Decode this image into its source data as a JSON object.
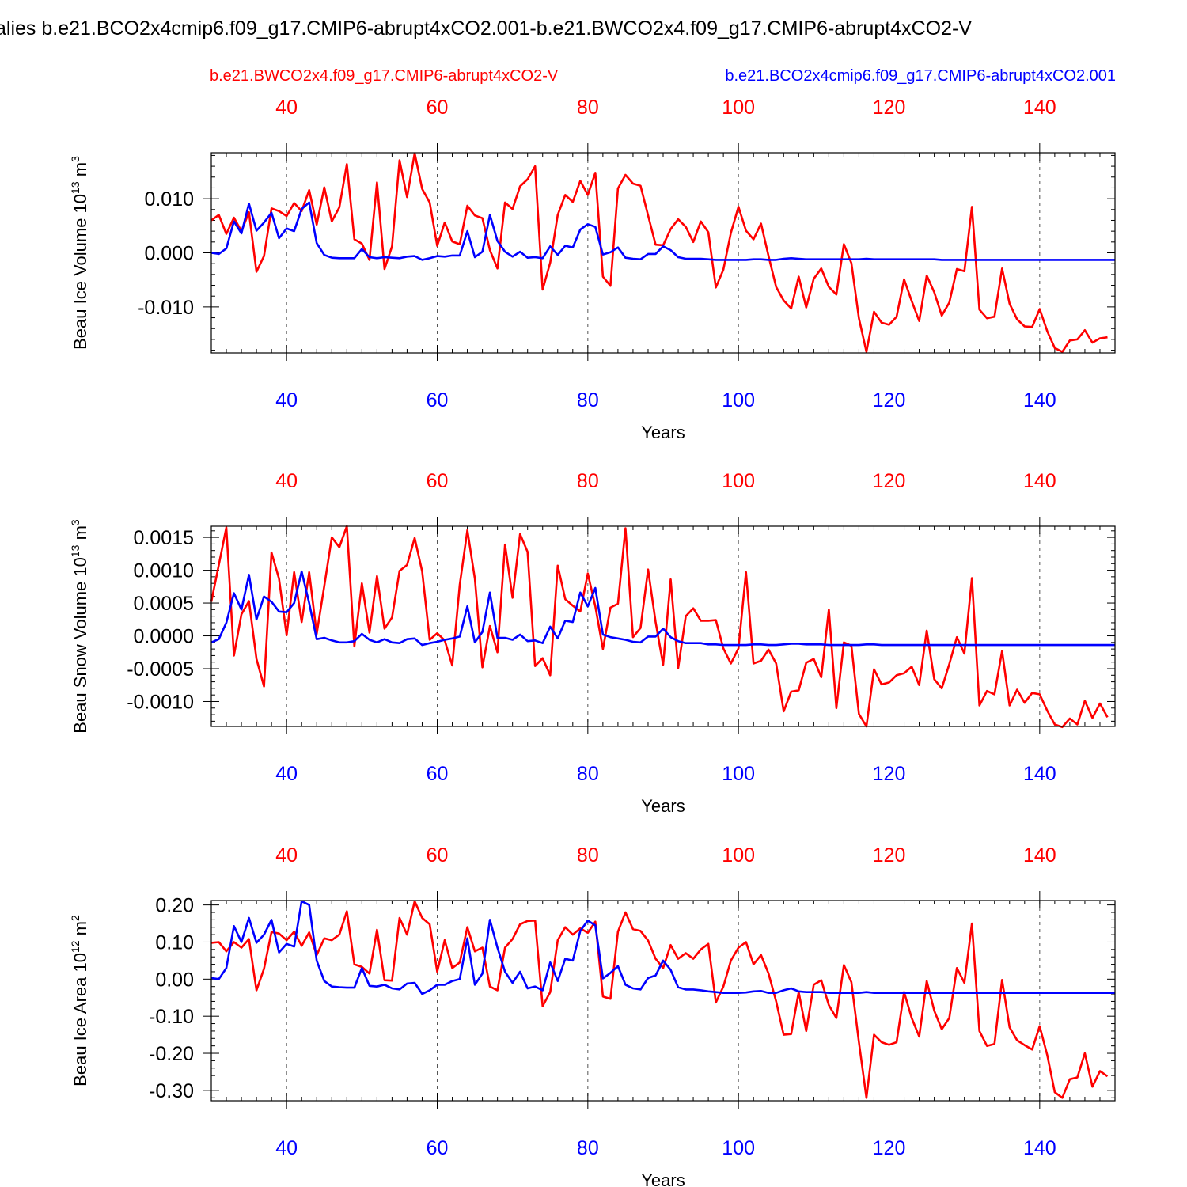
{
  "title": "alies b.e21.BCO2x4cmip6.f09_g17.CMIP6-abrupt4xCO2.001-b.e21.BWCO2x4.f09_g17.CMIP6-abrupt4xCO2-V",
  "legend": {
    "red_label": "b.e21.BWCO2x4.f09_g17.CMIP6-abrupt4xCO2-V",
    "blue_label": "b.e21.BCO2x4cmip6.f09_g17.CMIP6-abrupt4xCO2.001"
  },
  "colors": {
    "red": "#ff0000",
    "blue": "#0000ff",
    "axis": "#000000",
    "grid": "#555555"
  },
  "chart_data": [
    {
      "type": "line",
      "ylabel": "Beau Ice Volume",
      "yunit_base": "10",
      "yunit_exp": "13",
      "yunit_suffix": "m",
      "yunit_suffix_exp": "3",
      "xlabel": "Years",
      "xlim": [
        30,
        150
      ],
      "ylim": [
        -0.0185,
        0.0185
      ],
      "yticks": [
        -0.01,
        0.0,
        0.01
      ],
      "ytick_labels": [
        "-0.010",
        "0.000",
        "0.010"
      ],
      "xticks": [
        40,
        60,
        80,
        100,
        120,
        140
      ],
      "xtick_labels": [
        "40",
        "60",
        "80",
        "100",
        "120",
        "140"
      ],
      "grid_x": [
        40,
        60,
        80,
        100,
        120,
        140
      ],
      "series": [
        {
          "name": "red",
          "color": "red",
          "x_start": 30,
          "values": [
            0.006,
            0.007,
            0.0035,
            0.0065,
            0.004,
            0.0075,
            -0.0035,
            -0.0006,
            0.0082,
            0.0077,
            0.0068,
            0.0092,
            0.0077,
            0.0116,
            0.0052,
            0.0121,
            0.0058,
            0.0084,
            0.0164,
            0.0025,
            0.0017,
            -0.0013,
            0.013,
            -0.003,
            0.0012,
            0.0171,
            0.0103,
            0.0184,
            0.0118,
            0.0093,
            0.0013,
            0.0056,
            0.0021,
            0.0016,
            0.0087,
            0.0069,
            0.0064,
            0.0005,
            -0.0029,
            0.0093,
            0.0081,
            0.0123,
            0.0136,
            0.016,
            -0.0068,
            -0.0018,
            0.007,
            0.0107,
            0.0094,
            0.0133,
            0.0107,
            0.0148,
            -0.0044,
            -0.0061,
            0.0119,
            0.0144,
            0.0128,
            0.0124,
            0.0069,
            0.0015,
            0.0014,
            0.0044,
            0.0062,
            0.0048,
            0.002,
            0.0058,
            0.0038,
            -0.0064,
            -0.0031,
            0.0037,
            0.0085,
            0.0041,
            0.0025,
            0.0054,
            -0.0006,
            -0.0063,
            -0.0088,
            -0.0103,
            -0.0044,
            -0.0101,
            -0.0048,
            -0.0029,
            -0.0063,
            -0.0077,
            0.0016,
            -0.0019,
            -0.0121,
            -0.0183,
            -0.0109,
            -0.0129,
            -0.0133,
            -0.0118,
            -0.0049,
            -0.0089,
            -0.0126,
            -0.0042,
            -0.0073,
            -0.0116,
            -0.0092,
            -0.003,
            -0.0034,
            0.0085,
            -0.0105,
            -0.0121,
            -0.0118,
            -0.0029,
            -0.0094,
            -0.0123,
            -0.0136,
            -0.0137,
            -0.0104,
            -0.0145,
            -0.0176,
            -0.0183,
            -0.0162,
            -0.016,
            -0.0143,
            -0.0166,
            -0.0158,
            -0.0156
          ]
        },
        {
          "name": "blue",
          "color": "blue",
          "x_start": 30,
          "values": [
            0.0,
            -0.0002,
            0.0008,
            0.0058,
            0.0036,
            0.0091,
            0.0041,
            0.0056,
            0.0074,
            0.0027,
            0.0045,
            0.004,
            0.0081,
            0.0093,
            0.0018,
            -0.0004,
            -0.0009,
            -0.001,
            -0.001,
            -0.001,
            0.0007,
            -0.0008,
            -0.001,
            -0.0008,
            -0.0009,
            -0.001,
            -0.0007,
            -0.0006,
            -0.0013,
            -0.001,
            -0.0006,
            -0.0007,
            -0.0005,
            -0.0005,
            0.004,
            -0.0008,
            0.0002,
            0.007,
            0.0022,
            0.0002,
            -0.0007,
            0.0002,
            -0.0009,
            -0.0008,
            -0.001,
            0.0012,
            -0.0004,
            0.0013,
            0.001,
            0.0043,
            0.0053,
            0.0048,
            -0.0003,
            0.0001,
            0.001,
            -0.0009,
            -0.0011,
            -0.0012,
            -0.0002,
            -0.0002,
            0.0012,
            0.0005,
            -0.0008,
            -0.0011,
            -0.0011,
            -0.0011,
            -0.0012,
            -0.0013,
            -0.0013,
            -0.0013,
            -0.0013,
            -0.0013,
            -0.0012,
            -0.0012,
            -0.0013,
            -0.0013,
            -0.0011,
            -0.001,
            -0.0011,
            -0.0012,
            -0.0012,
            -0.0012,
            -0.0012,
            -0.0012,
            -0.0012,
            -0.0012,
            -0.0012,
            -0.0011,
            -0.0012,
            -0.0012,
            -0.0012,
            -0.0012,
            -0.0012,
            -0.0012,
            -0.0012,
            -0.0012,
            -0.0012,
            -0.0013,
            -0.0013,
            -0.0013,
            -0.0013,
            -0.0013,
            -0.0013,
            -0.0013,
            -0.0013,
            -0.0013,
            -0.0013,
            -0.0013,
            -0.0013,
            -0.0013,
            -0.0013,
            -0.0013,
            -0.0013,
            -0.0013,
            -0.0013,
            -0.0013,
            -0.0013,
            -0.0013,
            -0.0013,
            -0.0013,
            -0.0013
          ]
        }
      ]
    },
    {
      "type": "line",
      "ylabel": "Beau Snow Volume",
      "yunit_base": "10",
      "yunit_exp": "13",
      "yunit_suffix": "m",
      "yunit_suffix_exp": "3",
      "xlabel": "Years",
      "xlim": [
        30,
        150
      ],
      "ylim": [
        -0.00138,
        0.00167
      ],
      "yticks": [
        -0.001,
        -0.0005,
        0.0,
        0.0005,
        0.001,
        0.0015
      ],
      "ytick_labels": [
        "-0.0010",
        "-0.0005",
        "0.0000",
        "0.0005",
        "0.0010",
        "0.0015"
      ],
      "xticks": [
        40,
        60,
        80,
        100,
        120,
        140
      ],
      "xtick_labels": [
        "40",
        "60",
        "80",
        "100",
        "120",
        "140"
      ],
      "grid_x": [
        40,
        60,
        80,
        100,
        120,
        140
      ],
      "series": [
        {
          "name": "red",
          "color": "red",
          "x_start": 30,
          "values": [
            0.00052,
            0.00108,
            0.00165,
            -0.0003,
            0.00033,
            0.00053,
            -0.00035,
            -0.00077,
            0.00127,
            0.00087,
            1e-05,
            0.00097,
            0.00021,
            0.00097,
            3e-05,
            0.00076,
            0.0015,
            0.00135,
            0.00167,
            -0.00016,
            0.0008,
            5e-05,
            0.00091,
            0.00011,
            0.00028,
            0.00099,
            0.00108,
            0.00149,
            0.00098,
            -6e-05,
            4e-05,
            -7e-05,
            -0.00045,
            0.00078,
            0.00161,
            0.00087,
            -0.00048,
            0.00015,
            -0.00025,
            0.00139,
            0.00058,
            0.00155,
            0.00128,
            -0.00046,
            -0.00034,
            -0.0006,
            0.00107,
            0.00056,
            0.00046,
            0.00037,
            0.00095,
            0.00045,
            -0.0002,
            0.00043,
            0.00049,
            0.00164,
            -2e-05,
            0.00012,
            0.00101,
            0.00021,
            -0.00044,
            0.00086,
            -0.00049,
            0.0003,
            0.00042,
            0.00023,
            0.00023,
            0.00024,
            -0.00019,
            -0.00042,
            -0.00019,
            0.00097,
            -0.00042,
            -0.00038,
            -0.00021,
            -0.00042,
            -0.00115,
            -0.00085,
            -0.00083,
            -0.00041,
            -0.00035,
            -0.00063,
            0.0004,
            -0.0011,
            -0.0001,
            -0.00015,
            -0.00119,
            -0.00138,
            -0.00051,
            -0.00074,
            -0.00071,
            -0.0006,
            -0.00057,
            -0.00047,
            -0.00075,
            8e-05,
            -0.00066,
            -0.0008,
            -0.00043,
            -2e-05,
            -0.00027,
            0.00088,
            -0.00106,
            -0.00084,
            -0.00089,
            -0.00023,
            -0.00106,
            -0.00082,
            -0.00102,
            -0.00087,
            -0.00089,
            -0.00114,
            -0.00135,
            -0.00139,
            -0.00126,
            -0.00135,
            -0.00099,
            -0.00125,
            -0.00103,
            -0.00124
          ]
        },
        {
          "name": "blue",
          "color": "blue",
          "x_start": 30,
          "values": [
            -0.0001,
            -5e-05,
            0.0002,
            0.00065,
            0.0004,
            0.00093,
            0.00025,
            0.0006,
            0.00052,
            0.00037,
            0.00036,
            0.0005,
            0.00098,
            0.0005,
            -5e-05,
            -3e-05,
            -7e-05,
            -0.0001,
            -0.0001,
            -8e-05,
            3e-05,
            -6e-05,
            -0.0001,
            -5e-05,
            -0.0001,
            -0.00011,
            -5e-05,
            -4e-05,
            -0.00014,
            -0.00011,
            -9e-05,
            -6e-05,
            -4e-05,
            -1e-05,
            0.00045,
            -0.0001,
            6e-05,
            0.00066,
            -3e-05,
            -3e-05,
            -6e-05,
            2e-05,
            -8e-05,
            -7e-05,
            -0.00011,
            0.00014,
            -4e-05,
            0.00023,
            0.00021,
            0.00066,
            0.00045,
            0.00073,
            2e-05,
            -2e-05,
            -4e-05,
            -6e-05,
            -9e-05,
            -0.0001,
            -1e-05,
            -1e-05,
            0.00011,
            -2e-05,
            -8e-05,
            -0.00011,
            -0.00011,
            -0.00011,
            -0.00013,
            -0.00013,
            -0.00014,
            -0.00014,
            -0.00014,
            -0.00014,
            -0.00013,
            -0.00013,
            -0.00014,
            -0.00014,
            -0.00013,
            -0.00012,
            -0.00012,
            -0.00013,
            -0.00013,
            -0.00013,
            -0.00014,
            -0.00014,
            -0.00014,
            -0.00014,
            -0.00014,
            -0.00013,
            -0.00013,
            -0.00014,
            -0.00014,
            -0.00014,
            -0.00014,
            -0.00014,
            -0.00014,
            -0.00014,
            -0.00014,
            -0.00014,
            -0.00014,
            -0.00014,
            -0.00014,
            -0.00014,
            -0.00014,
            -0.00014,
            -0.00014,
            -0.00014,
            -0.00014,
            -0.00014,
            -0.00014,
            -0.00014,
            -0.00014,
            -0.00014,
            -0.00014,
            -0.00014,
            -0.00014,
            -0.00014,
            -0.00014,
            -0.00014,
            -0.00014,
            -0.00014,
            -0.00014
          ]
        }
      ]
    },
    {
      "type": "line",
      "ylabel": "Beau Ice Area",
      "yunit_base": "10",
      "yunit_exp": "12",
      "yunit_suffix": "m",
      "yunit_suffix_exp": "2",
      "xlabel": "Years",
      "xlim": [
        30,
        150
      ],
      "ylim": [
        -0.328,
        0.212
      ],
      "yticks": [
        -0.3,
        -0.2,
        -0.1,
        0.0,
        0.1,
        0.2
      ],
      "ytick_labels": [
        "-0.30",
        "-0.20",
        "-0.10",
        "0.00",
        "0.10",
        "0.20"
      ],
      "xticks": [
        40,
        60,
        80,
        100,
        120,
        140
      ],
      "xtick_labels": [
        "40",
        "60",
        "80",
        "100",
        "120",
        "140"
      ],
      "grid_x": [
        40,
        60,
        80,
        100,
        120,
        140
      ],
      "series": [
        {
          "name": "red",
          "color": "red",
          "x_start": 30,
          "values": [
            0.098,
            0.1,
            0.075,
            0.1,
            0.085,
            0.108,
            -0.03,
            0.028,
            0.127,
            0.123,
            0.105,
            0.128,
            0.09,
            0.126,
            0.065,
            0.11,
            0.105,
            0.12,
            0.183,
            0.04,
            0.033,
            0.015,
            0.133,
            -0.003,
            -0.004,
            0.165,
            0.12,
            0.21,
            0.165,
            0.148,
            0.02,
            0.105,
            0.03,
            0.045,
            0.14,
            0.075,
            0.085,
            -0.02,
            -0.03,
            0.085,
            0.108,
            0.148,
            0.157,
            0.158,
            -0.073,
            -0.035,
            0.105,
            0.14,
            0.12,
            0.137,
            0.125,
            0.155,
            -0.047,
            -0.053,
            0.128,
            0.18,
            0.135,
            0.13,
            0.104,
            0.055,
            0.03,
            0.092,
            0.055,
            0.07,
            0.055,
            0.08,
            0.095,
            -0.063,
            -0.02,
            0.05,
            0.085,
            0.1,
            0.04,
            0.065,
            0.015,
            -0.06,
            -0.15,
            -0.148,
            -0.035,
            -0.14,
            -0.015,
            -0.003,
            -0.07,
            -0.105,
            0.038,
            -0.008,
            -0.17,
            -0.32,
            -0.15,
            -0.17,
            -0.177,
            -0.17,
            -0.035,
            -0.105,
            -0.155,
            -0.005,
            -0.085,
            -0.135,
            -0.105,
            0.03,
            -0.01,
            0.15,
            -0.14,
            -0.18,
            -0.175,
            -0.002,
            -0.13,
            -0.165,
            -0.178,
            -0.19,
            -0.127,
            -0.205,
            -0.305,
            -0.32,
            -0.27,
            -0.265,
            -0.2,
            -0.29,
            -0.248,
            -0.262
          ]
        },
        {
          "name": "blue",
          "color": "blue",
          "x_start": 30,
          "values": [
            0.003,
            0.0,
            0.03,
            0.143,
            0.1,
            0.165,
            0.098,
            0.12,
            0.16,
            0.072,
            0.095,
            0.088,
            0.21,
            0.2,
            0.05,
            -0.005,
            -0.02,
            -0.022,
            -0.023,
            -0.023,
            0.03,
            -0.018,
            -0.02,
            -0.015,
            -0.025,
            -0.028,
            -0.012,
            -0.01,
            -0.04,
            -0.03,
            -0.015,
            -0.015,
            -0.005,
            0.0,
            0.11,
            -0.015,
            0.015,
            0.16,
            0.085,
            0.02,
            -0.01,
            0.02,
            -0.025,
            -0.02,
            -0.03,
            0.045,
            -0.005,
            0.055,
            0.05,
            0.13,
            0.158,
            0.145,
            0.002,
            0.017,
            0.035,
            -0.015,
            -0.025,
            -0.028,
            0.003,
            0.01,
            0.05,
            0.025,
            -0.022,
            -0.028,
            -0.028,
            -0.03,
            -0.033,
            -0.035,
            -0.037,
            -0.037,
            -0.037,
            -0.036,
            -0.033,
            -0.032,
            -0.037,
            -0.037,
            -0.03,
            -0.025,
            -0.033,
            -0.035,
            -0.035,
            -0.035,
            -0.037,
            -0.037,
            -0.037,
            -0.037,
            -0.037,
            -0.035,
            -0.037,
            -0.037,
            -0.037,
            -0.037,
            -0.037,
            -0.037,
            -0.037,
            -0.037,
            -0.037,
            -0.037,
            -0.037,
            -0.037,
            -0.037,
            -0.037,
            -0.037,
            -0.037,
            -0.037,
            -0.037,
            -0.037,
            -0.037,
            -0.037,
            -0.037,
            -0.037,
            -0.037,
            -0.037,
            -0.037,
            -0.037,
            -0.037,
            -0.037,
            -0.037,
            -0.037,
            -0.037,
            -0.037
          ]
        }
      ]
    }
  ]
}
